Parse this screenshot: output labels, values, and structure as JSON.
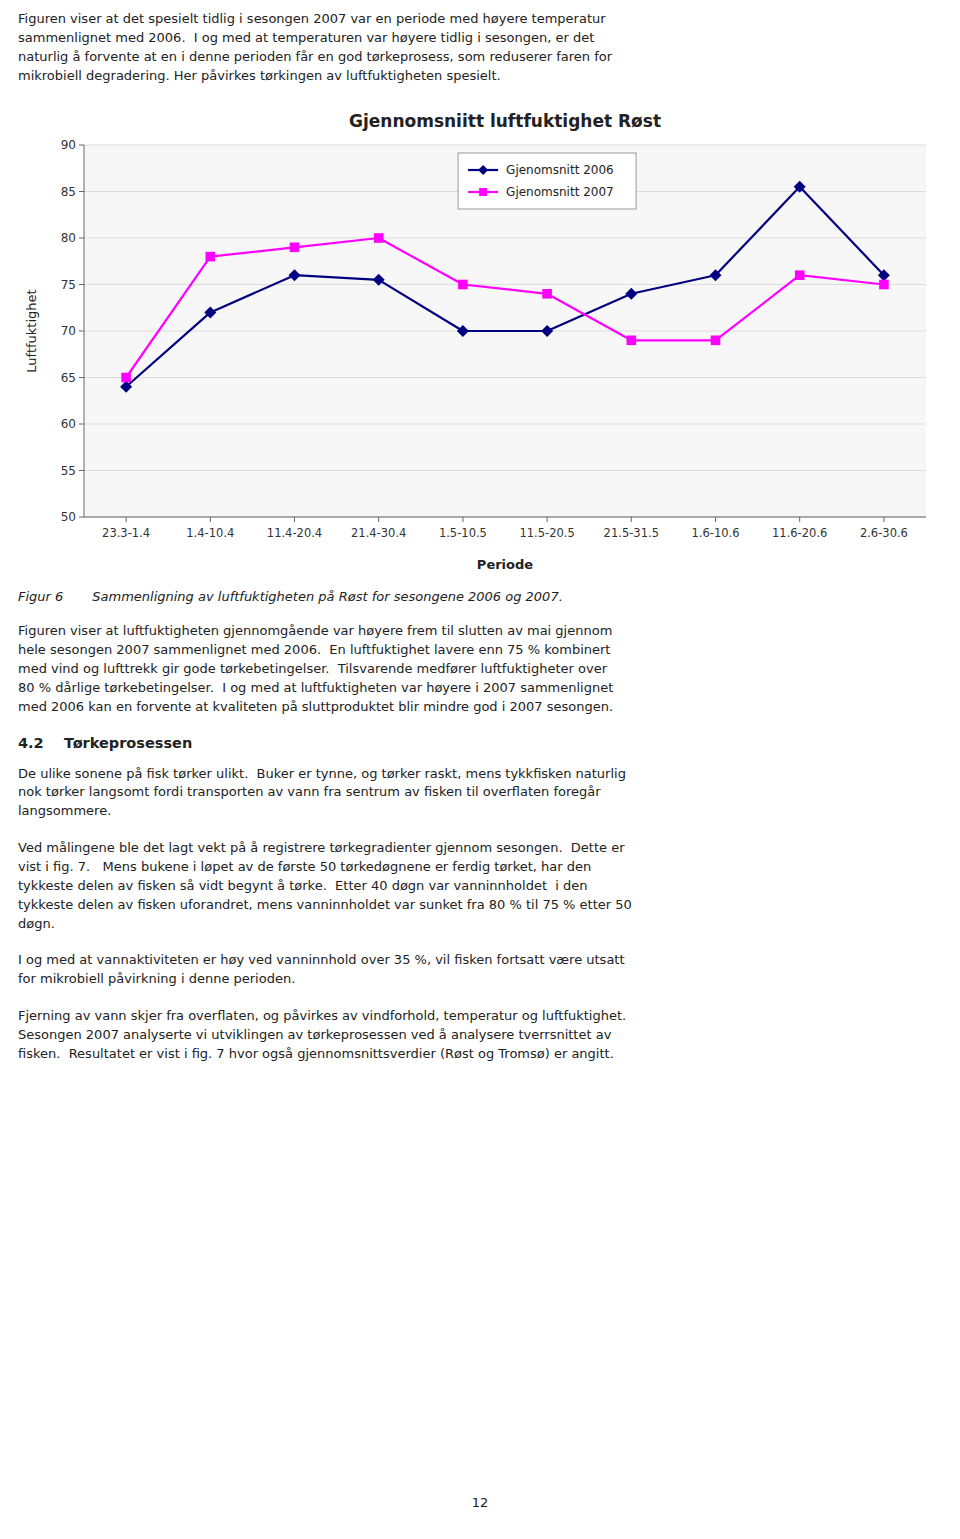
{
  "intro": "Figuren viser at det spesielt tidlig i sesongen 2007 var en periode med høyere temperatur\nsammenlignet med 2006.  I og med at temperaturen var høyere tidlig i sesongen, er det\nnaturlig å forvente at en i denne perioden får en god tørkeprosess, som reduserer faren for\nmikrobiell degradering. Her påvirkes tørkingen av luftfuktigheten spesielt.",
  "chart_data": {
    "type": "line",
    "title": "Gjennomsniitt luftfuktighet Røst",
    "x_label": "Periode",
    "y_label": "Luftfuktighet",
    "categories": [
      "23.3-1.4",
      "1.4-10.4",
      "11.4-20.4",
      "21.4-30.4",
      "1.5-10.5",
      "11.5-20.5",
      "21.5-31.5",
      "1.6-10.6",
      "11.6-20.6",
      "2.6-30.6"
    ],
    "series": [
      {
        "name": "Gjenomsnitt 2006",
        "color": "#000080",
        "marker": "diamond",
        "values": [
          64,
          72,
          76,
          75.5,
          70,
          70,
          74,
          76,
          85.5,
          76
        ]
      },
      {
        "name": "Gjenomsnitt 2007",
        "color": "#FF00FF",
        "marker": "square",
        "values": [
          65,
          78,
          79,
          80,
          75,
          74,
          69,
          69,
          76,
          75
        ]
      }
    ],
    "ylim": [
      50,
      90
    ],
    "yticks": [
      50,
      55,
      60,
      65,
      70,
      75,
      80,
      85,
      90
    ],
    "grid": true,
    "legend": "top"
  },
  "caption": "Figur 6       Sammenligning av luftfuktigheten på Røst for sesongene 2006 og 2007.",
  "body_first": "Figuren viser at luftfuktigheten gjennomgående var høyere frem til slutten av mai gjennom\nhele sesongen 2007 sammenlignet med 2006.  En luftfuktighet lavere enn 75 % kombinert\nmed vind og lufttrekk gir gode tørkebetingelser.  Tilsvarende medfører luftfuktigheter over\n80 % dårlige tørkebetingelser.  I og med at luftfuktigheten var høyere i 2007 sammenlignet\nmed 2006 kan en forvente at kvaliteten på sluttproduktet blir mindre god i 2007 sesongen.",
  "section_header": "4.2    Tørkeprosessen",
  "body": [
    "De ulike sonene på fisk tørker ulikt.  Buker er tynne, og tørker raskt, mens tykkfisken naturlig\nnok tørker langsomt fordi transporten av vann fra sentrum av fisken til overflaten foregår\nlangsommere.",
    "Ved målingene ble det lagt vekt på å registrere tørkegradienter gjennom sesongen.  Dette er\nvist i fig. 7.   Mens bukene i løpet av de første 50 tørkedøgnene er ferdig tørket, har den\ntykkeste delen av fisken så vidt begynt å tørke.  Etter 40 døgn var vanninnholdet  i den\ntykkeste delen av fisken uforandret, mens vanninnholdet var sunket fra 80 % til 75 % etter 50\ndøgn.",
    "I og med at vannaktiviteten er høy ved vanninnhold over 35 %, vil fisken fortsatt være utsatt\nfor mikrobiell påvirkning i denne perioden.",
    "Fjerning av vann skjer fra overflaten, og påvirkes av vindforhold, temperatur og luftfuktighet.\nSesongen 2007 analyserte vi utviklingen av tørkeprosessen ved å analysere tverrsnittet av\nfisken.  Resultatet er vist i fig. 7 hvor også gjennomsnittsverdier (Røst og Tromsø) er angitt."
  ],
  "page_number": "12"
}
